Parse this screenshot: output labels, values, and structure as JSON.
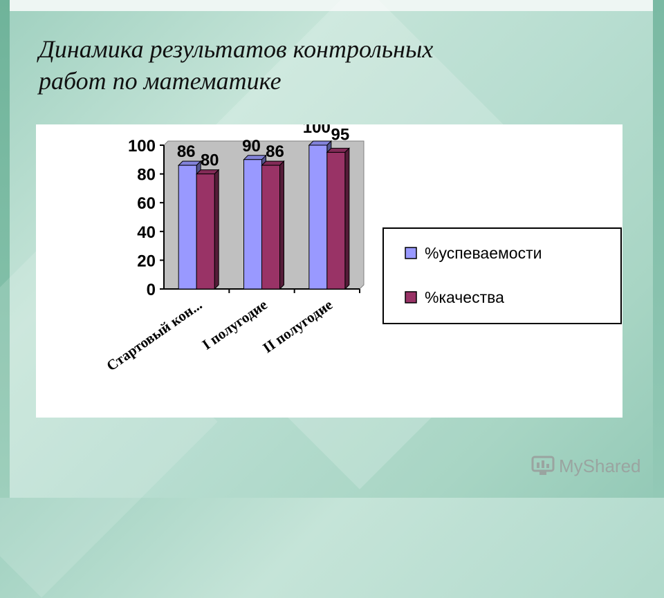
{
  "slide": {
    "title_line1": "Динамика результатов контрольных",
    "title_line2": "работ по математике"
  },
  "watermark": {
    "text": "MyShared",
    "icon": "myshared-logo-icon"
  },
  "chart_data": {
    "type": "bar",
    "categories": [
      "Стартовый кон...",
      "I полугодие",
      "II полугодие"
    ],
    "series": [
      {
        "name": "%успеваемости",
        "values": [
          86,
          90,
          100
        ],
        "color": "#9999ff"
      },
      {
        "name": "%качества",
        "values": [
          80,
          86,
          95
        ],
        "color": "#993366"
      }
    ],
    "ylim": [
      0,
      100
    ],
    "yticks": [
      0,
      20,
      40,
      60,
      80,
      100
    ],
    "grid": false,
    "legend": "right",
    "plot_background": "#c0c0c0"
  }
}
